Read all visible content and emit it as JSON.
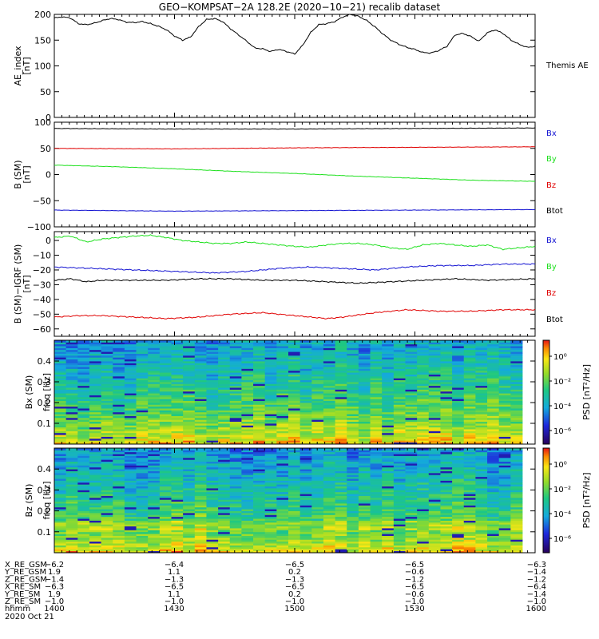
{
  "title": "GEO−KOMPSAT−2A 128.2E (2020−10−21) recalib dataset",
  "colors": {
    "black": "#000000",
    "red": "#e00000",
    "green": "#1ee01e",
    "blue": "#1414d2"
  },
  "chart_data": [
    {
      "type": "line",
      "id": "ae",
      "ylabel": [
        "AE_index",
        "[nT]"
      ],
      "ylim": [
        0,
        200
      ],
      "yticks": [
        0,
        50,
        100,
        150,
        200
      ],
      "xlim": [
        0,
        120
      ],
      "legend": [
        {
          "text": "Themis AE",
          "color": "black"
        }
      ],
      "series": [
        {
          "name": "Themis AE",
          "color": "black",
          "points": [
            [
              0,
              193
            ],
            [
              2,
              195
            ],
            [
              4,
              193
            ],
            [
              6,
              182
            ],
            [
              8,
              180
            ],
            [
              10,
              183
            ],
            [
              12,
              188
            ],
            [
              14,
              192
            ],
            [
              16,
              190
            ],
            [
              18,
              185
            ],
            [
              20,
              184
            ],
            [
              22,
              186
            ],
            [
              24,
              182
            ],
            [
              26,
              177
            ],
            [
              28,
              170
            ],
            [
              30,
              158
            ],
            [
              32,
              150
            ],
            [
              34,
              156
            ],
            [
              36,
              176
            ],
            [
              38,
              190
            ],
            [
              40,
              192
            ],
            [
              42,
              186
            ],
            [
              44,
              172
            ],
            [
              46,
              160
            ],
            [
              48,
              148
            ],
            [
              50,
              135
            ],
            [
              52,
              133
            ],
            [
              54,
              128
            ],
            [
              56,
              132
            ],
            [
              58,
              128
            ],
            [
              60,
              123
            ],
            [
              62,
              140
            ],
            [
              64,
              165
            ],
            [
              66,
              180
            ],
            [
              68,
              182
            ],
            [
              70,
              186
            ],
            [
              72,
              195
            ],
            [
              74,
              200
            ],
            [
              76,
              196
            ],
            [
              78,
              188
            ],
            [
              80,
              176
            ],
            [
              82,
              162
            ],
            [
              84,
              150
            ],
            [
              86,
              142
            ],
            [
              88,
              136
            ],
            [
              90,
              132
            ],
            [
              92,
              126
            ],
            [
              94,
              125
            ],
            [
              96,
              130
            ],
            [
              98,
              138
            ],
            [
              100,
              160
            ],
            [
              102,
              163
            ],
            [
              104,
              157
            ],
            [
              106,
              148
            ],
            [
              108,
              164
            ],
            [
              110,
              170
            ],
            [
              112,
              163
            ],
            [
              114,
              150
            ],
            [
              116,
              142
            ],
            [
              118,
              136
            ],
            [
              120,
              138
            ]
          ]
        }
      ]
    },
    {
      "type": "line",
      "id": "b_sm",
      "ylabel": [
        "B (SM)",
        "[nT]"
      ],
      "ylim": [
        -100,
        100
      ],
      "yticks": [
        -100,
        -50,
        0,
        50,
        100
      ],
      "xlim": [
        0,
        120
      ],
      "legend": [
        {
          "text": "Bx",
          "color": "blue"
        },
        {
          "text": "By",
          "color": "green"
        },
        {
          "text": "Bz",
          "color": "red"
        },
        {
          "text": "Btot",
          "color": "black"
        }
      ],
      "series": [
        {
          "name": "Btot",
          "color": "black",
          "points": [
            [
              0,
              88
            ],
            [
              30,
              87
            ],
            [
              60,
              87
            ],
            [
              90,
              88
            ],
            [
              120,
              89
            ]
          ]
        },
        {
          "name": "Bz",
          "color": "red",
          "points": [
            [
              0,
              50
            ],
            [
              30,
              49
            ],
            [
              60,
              51
            ],
            [
              90,
              52
            ],
            [
              120,
              53
            ]
          ]
        },
        {
          "name": "By",
          "color": "green",
          "points": [
            [
              0,
              18
            ],
            [
              15,
              15
            ],
            [
              30,
              11
            ],
            [
              45,
              6
            ],
            [
              60,
              2
            ],
            [
              75,
              -3
            ],
            [
              90,
              -7
            ],
            [
              105,
              -11
            ],
            [
              120,
              -13
            ]
          ]
        },
        {
          "name": "Bx",
          "color": "blue",
          "points": [
            [
              0,
              -68
            ],
            [
              30,
              -70
            ],
            [
              60,
              -69
            ],
            [
              90,
              -68
            ],
            [
              120,
              -67
            ]
          ]
        }
      ]
    },
    {
      "type": "line",
      "id": "b_igrf",
      "ylabel": [
        "B (SM)−IGRF (SM)",
        "[nT]"
      ],
      "ylim": [
        -65,
        6
      ],
      "yticks": [
        -60,
        -50,
        -40,
        -30,
        -20,
        -10,
        0
      ],
      "xlim": [
        0,
        120
      ],
      "legend": [
        {
          "text": "Bx",
          "color": "blue"
        },
        {
          "text": "By",
          "color": "green"
        },
        {
          "text": "Bz",
          "color": "red"
        },
        {
          "text": "Btot",
          "color": "black"
        }
      ],
      "series": [
        {
          "name": "By",
          "color": "green",
          "points": [
            [
              0,
              2
            ],
            [
              4,
              3
            ],
            [
              8,
              -1
            ],
            [
              12,
              1
            ],
            [
              16,
              2
            ],
            [
              20,
              3
            ],
            [
              24,
              3.5
            ],
            [
              28,
              2
            ],
            [
              32,
              0
            ],
            [
              36,
              -1
            ],
            [
              40,
              -2
            ],
            [
              44,
              -2
            ],
            [
              48,
              -1
            ],
            [
              52,
              -2
            ],
            [
              56,
              -3
            ],
            [
              60,
              -4
            ],
            [
              64,
              -4.5
            ],
            [
              68,
              -3
            ],
            [
              72,
              -2
            ],
            [
              76,
              -2
            ],
            [
              80,
              -3
            ],
            [
              84,
              -5
            ],
            [
              88,
              -6
            ],
            [
              92,
              -3
            ],
            [
              96,
              -2
            ],
            [
              100,
              -3
            ],
            [
              104,
              -4
            ],
            [
              108,
              -3
            ],
            [
              112,
              -6
            ],
            [
              116,
              -5
            ],
            [
              120,
              -4
            ]
          ]
        },
        {
          "name": "Bx",
          "color": "blue",
          "points": [
            [
              0,
              -18
            ],
            [
              10,
              -19
            ],
            [
              20,
              -20
            ],
            [
              30,
              -21
            ],
            [
              40,
              -22
            ],
            [
              48,
              -21
            ],
            [
              56,
              -19
            ],
            [
              64,
              -18
            ],
            [
              72,
              -19
            ],
            [
              80,
              -20
            ],
            [
              88,
              -18
            ],
            [
              96,
              -17
            ],
            [
              104,
              -17
            ],
            [
              112,
              -16
            ],
            [
              120,
              -16
            ]
          ]
        },
        {
          "name": "Btot",
          "color": "black",
          "points": [
            [
              0,
              -27
            ],
            [
              4,
              -26
            ],
            [
              8,
              -28
            ],
            [
              12,
              -27
            ],
            [
              20,
              -27
            ],
            [
              28,
              -27
            ],
            [
              36,
              -26
            ],
            [
              44,
              -26
            ],
            [
              52,
              -27
            ],
            [
              60,
              -27
            ],
            [
              68,
              -28
            ],
            [
              76,
              -29
            ],
            [
              84,
              -28
            ],
            [
              92,
              -27
            ],
            [
              100,
              -26
            ],
            [
              108,
              -27
            ],
            [
              120,
              -26
            ]
          ]
        },
        {
          "name": "Bz",
          "color": "red",
          "points": [
            [
              0,
              -52
            ],
            [
              6,
              -51
            ],
            [
              12,
              -51
            ],
            [
              20,
              -52
            ],
            [
              28,
              -53
            ],
            [
              36,
              -52
            ],
            [
              44,
              -50
            ],
            [
              52,
              -49
            ],
            [
              60,
              -51
            ],
            [
              68,
              -53
            ],
            [
              72,
              -52
            ],
            [
              80,
              -49
            ],
            [
              88,
              -47
            ],
            [
              96,
              -48
            ],
            [
              104,
              -48
            ],
            [
              112,
              -47
            ],
            [
              120,
              -47
            ]
          ]
        }
      ]
    },
    {
      "type": "heatmap",
      "id": "bx_psd",
      "ylabel": [
        "Bx (SM)",
        "freq  [Hz]"
      ],
      "ylim": [
        0,
        0.5
      ],
      "yticks": [
        0.1,
        0.2,
        0.3,
        0.4
      ],
      "colorbar": {
        "label": "PSD [nT²/Hz]",
        "ticks": [
          "10⁰",
          "10⁻²",
          "10⁻⁴",
          "10⁻⁶"
        ]
      }
    },
    {
      "type": "heatmap",
      "id": "bz_psd",
      "ylabel": [
        "Bz (SM)",
        "freq  [Hz]"
      ],
      "ylim": [
        0,
        0.5
      ],
      "yticks": [
        0.1,
        0.2,
        0.3,
        0.4
      ],
      "colorbar": {
        "label": "PSD [nT²/Hz]",
        "ticks": [
          "10⁰",
          "10⁻²",
          "10⁻⁴",
          "10⁻⁶"
        ]
      }
    }
  ],
  "orbit_table": {
    "labels": [
      "X_RE_GSM",
      "Y_RE_GSM",
      "Z_RE_GSM",
      "X_RE_SM",
      "Y_RE_SM",
      "Z_RE_SM",
      "hhmm"
    ],
    "columns": [
      [
        "−6.2",
        "1.9",
        "−1.4",
        "−6.3",
        "1.9",
        "−1.0",
        "1400"
      ],
      [
        "−6.4",
        "1.1",
        "−1.3",
        "−6.5",
        "1.1",
        "−1.0",
        "1430"
      ],
      [
        "−6.5",
        "0.2",
        "−1.3",
        "−6.5",
        "0.2",
        "−1.0",
        "1500"
      ],
      [
        "−6.5",
        "−0.6",
        "−1.2",
        "−6.5",
        "−0.6",
        "−1.0",
        "1530"
      ],
      [
        "−6.3",
        "−1.4",
        "−1.2",
        "−6.4",
        "−1.4",
        "−1.0",
        "1600"
      ]
    ],
    "date": "2020 Oct 21"
  }
}
